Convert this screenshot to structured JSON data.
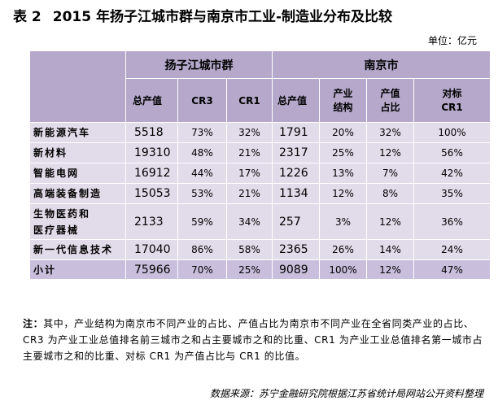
{
  "title": {
    "number": "表 2",
    "text": "2015 年扬子江城市群与南京市工业-制造业分布及比较"
  },
  "unit": "单位：亿元",
  "table": {
    "group_headers": [
      "扬子江城市群",
      "南京市"
    ],
    "sub_headers": {
      "yz": [
        "总产值",
        "CR3",
        "CR1"
      ],
      "nj": [
        "总产值",
        "产业\n结构",
        "产值\n占比",
        "对标\nCR1"
      ]
    },
    "rows": [
      {
        "label": "新能源汽车",
        "yz": [
          "5518",
          "73%",
          "32%"
        ],
        "nj": [
          "1791",
          "20%",
          "32%",
          "100%"
        ]
      },
      {
        "label": "新材料",
        "yz": [
          "19310",
          "48%",
          "21%"
        ],
        "nj": [
          "2317",
          "25%",
          "12%",
          "56%"
        ]
      },
      {
        "label": "智能电网",
        "yz": [
          "16912",
          "44%",
          "17%"
        ],
        "nj": [
          "1226",
          "13%",
          "7%",
          "42%"
        ]
      },
      {
        "label": "高端装备制造",
        "yz": [
          "15053",
          "53%",
          "21%"
        ],
        "nj": [
          "1134",
          "12%",
          "8%",
          "35%"
        ]
      },
      {
        "label": "生物医药和\n医疗器械",
        "yz": [
          "2133",
          "59%",
          "34%"
        ],
        "nj": [
          "257",
          "3%",
          "12%",
          "36%"
        ]
      },
      {
        "label": "新一代信息技术",
        "yz": [
          "17040",
          "86%",
          "58%"
        ],
        "nj": [
          "2365",
          "26%",
          "14%",
          "24%"
        ]
      },
      {
        "label": "小计",
        "yz": [
          "75966",
          "70%",
          "25%"
        ],
        "nj": [
          "9089",
          "100%",
          "12%",
          "47%"
        ]
      }
    ]
  },
  "note": {
    "prefix": "注：",
    "text": "其中，产业结构为南京市不同产业的占比、产值占比为南京市不同产业在全省同类产业的占比、CR3 为产业工业总值排名前三城市之和占主要城市之和的比重、CR1 为产业工业总值排名第一城市占主要城市之和的比重、对标 CR1 为产值占比与 CR1 的比值。"
  },
  "source": "数据来源：苏宁金融研究院根据江苏省统计局网站公开资料整理"
}
